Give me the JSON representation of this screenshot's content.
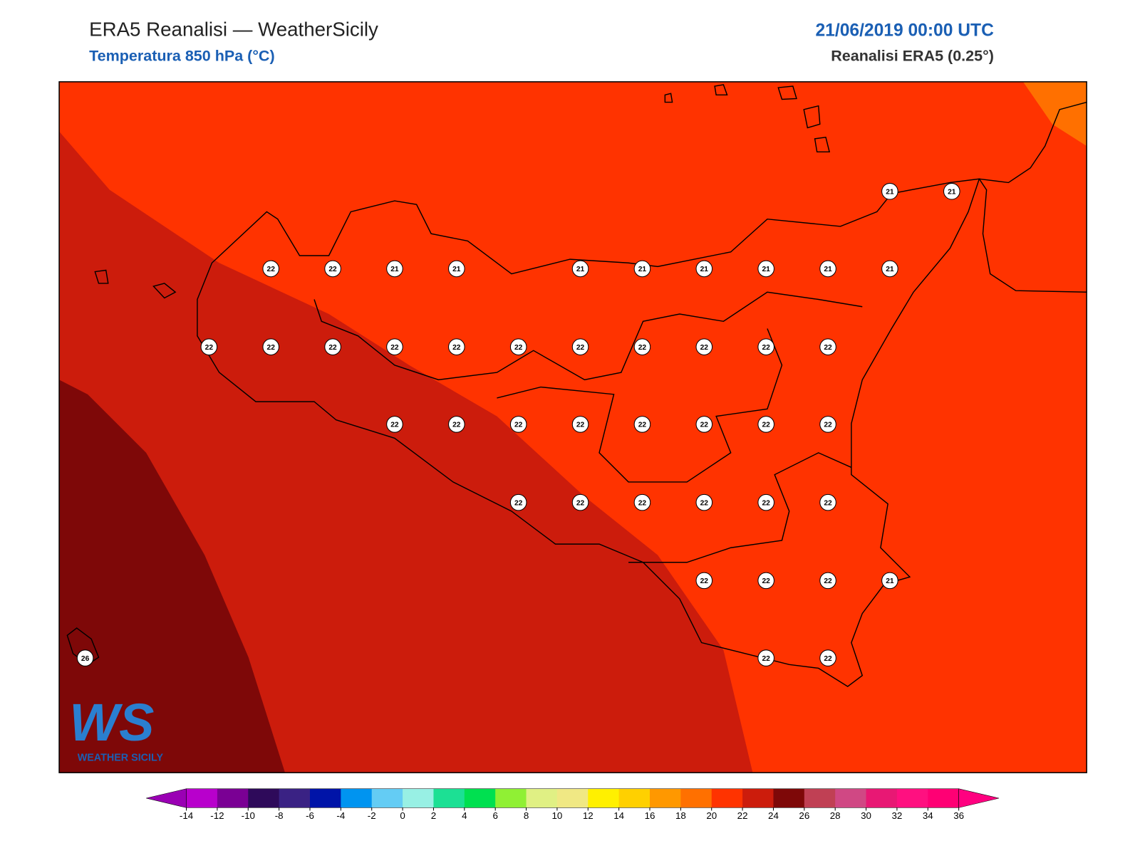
{
  "header": {
    "title": "ERA5 Reanalisi — WeatherSicily",
    "subtitle": "Temperatura 850 hPa (°C)",
    "date": "21/06/2019 00:00 UTC",
    "source": "Reanalisi ERA5 (0.25°)"
  },
  "map": {
    "values": [
      21,
      21,
      22,
      22,
      21,
      21,
      21,
      21,
      21,
      21,
      21,
      21,
      22,
      22,
      22,
      22,
      22,
      22,
      22,
      22,
      22,
      22,
      22,
      22,
      22,
      22,
      22,
      22,
      22,
      22,
      22,
      22,
      22,
      22,
      22,
      22,
      22,
      22,
      22,
      22,
      21,
      26,
      22,
      22
    ]
  },
  "colorbar": {
    "ticks": [
      -14,
      -12,
      -10,
      -8,
      -6,
      -4,
      -2,
      0,
      2,
      4,
      6,
      8,
      10,
      12,
      14,
      16,
      18,
      20,
      22,
      24,
      26,
      28,
      30,
      32,
      34,
      36
    ],
    "colors": [
      "#9a00b4",
      "#b800cc",
      "#7a0094",
      "#2e0a5a",
      "#3a2284",
      "#0014a8",
      "#0094f0",
      "#64ccf4",
      "#98f0e4",
      "#1ce094",
      "#00e050",
      "#90f034",
      "#e0f084",
      "#f0e884",
      "#fff000",
      "#ffd000",
      "#ff9800",
      "#ff7000",
      "#ff3300",
      "#cc1c0c",
      "#7e0808",
      "#c04054",
      "#d04884",
      "#e81874",
      "#ff1080",
      "#ff0074",
      "#ff0080"
    ]
  },
  "logo": {
    "mark": "WS",
    "text": "WEATHER SICILY"
  }
}
